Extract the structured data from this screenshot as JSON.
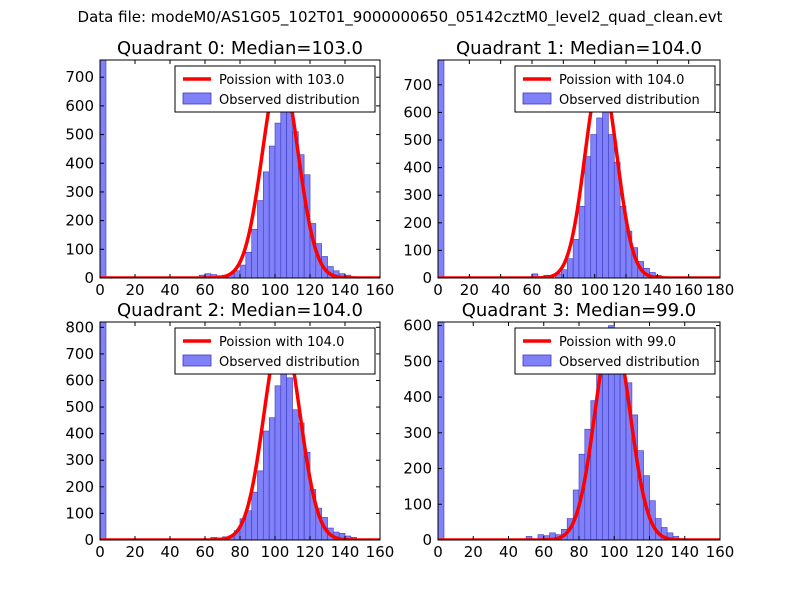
{
  "suptitle": "Data file: modeM0/AS1G05_102T01_9000000650_05142cztM0_level2_quad_clean.evt",
  "colors": {
    "bar_fill": "#8080f8",
    "bar_edge": "#3b3bc0",
    "curve": "#ff0000",
    "curve_highlight": "#f2a0a0"
  },
  "chart_data": [
    {
      "type": "bar",
      "title": "Quadrant 0: Median=103.0",
      "median": 103.0,
      "xlim": [
        0,
        160
      ],
      "ylim": [
        0,
        760
      ],
      "xticks": [
        0,
        20,
        40,
        60,
        80,
        100,
        120,
        140,
        160
      ],
      "yticks": [
        0,
        100,
        200,
        300,
        400,
        500,
        600,
        700
      ],
      "bin_width": 3.33,
      "bins": [
        {
          "x": 0,
          "y": 760
        },
        {
          "x": 56.7,
          "y": 10
        },
        {
          "x": 60,
          "y": 15
        },
        {
          "x": 63.3,
          "y": 12
        },
        {
          "x": 66.7,
          "y": 8
        },
        {
          "x": 70,
          "y": 10
        },
        {
          "x": 73.3,
          "y": 15
        },
        {
          "x": 76.7,
          "y": 25
        },
        {
          "x": 80,
          "y": 45
        },
        {
          "x": 83.3,
          "y": 90
        },
        {
          "x": 86.7,
          "y": 170
        },
        {
          "x": 90,
          "y": 270
        },
        {
          "x": 93.3,
          "y": 370
        },
        {
          "x": 96.7,
          "y": 460
        },
        {
          "x": 100,
          "y": 540
        },
        {
          "x": 103.3,
          "y": 580
        },
        {
          "x": 106.7,
          "y": 670
        },
        {
          "x": 110,
          "y": 510
        },
        {
          "x": 113.3,
          "y": 430
        },
        {
          "x": 116.7,
          "y": 360
        },
        {
          "x": 120,
          "y": 190
        },
        {
          "x": 123.3,
          "y": 120
        },
        {
          "x": 126.7,
          "y": 75
        },
        {
          "x": 130,
          "y": 40
        },
        {
          "x": 133.3,
          "y": 25
        },
        {
          "x": 136.7,
          "y": 15
        },
        {
          "x": 140,
          "y": 10
        },
        {
          "x": 143.3,
          "y": 5
        }
      ],
      "fit": {
        "label": "Poission with 103.0",
        "center": 103,
        "peak": 725
      },
      "legend": {
        "curve_label": "Poission with 103.0",
        "bar_label": "Observed distribution"
      }
    },
    {
      "type": "bar",
      "title": "Quadrant 1: Median=104.0",
      "median": 104.0,
      "xlim": [
        0,
        180
      ],
      "ylim": [
        0,
        790
      ],
      "xticks": [
        0,
        20,
        40,
        60,
        80,
        100,
        120,
        140,
        160,
        180
      ],
      "yticks": [
        0,
        100,
        200,
        300,
        400,
        500,
        600,
        700
      ],
      "bin_width": 3.75,
      "bins": [
        {
          "x": 0,
          "y": 790
        },
        {
          "x": 60,
          "y": 15
        },
        {
          "x": 67.5,
          "y": 10
        },
        {
          "x": 75,
          "y": 15
        },
        {
          "x": 78.75,
          "y": 30
        },
        {
          "x": 82.5,
          "y": 70
        },
        {
          "x": 86.25,
          "y": 140
        },
        {
          "x": 90,
          "y": 260
        },
        {
          "x": 93.75,
          "y": 440
        },
        {
          "x": 97.5,
          "y": 520
        },
        {
          "x": 101.25,
          "y": 580
        },
        {
          "x": 105,
          "y": 720
        },
        {
          "x": 108.75,
          "y": 520
        },
        {
          "x": 112.5,
          "y": 420
        },
        {
          "x": 116.25,
          "y": 260
        },
        {
          "x": 120,
          "y": 170
        },
        {
          "x": 123.75,
          "y": 110
        },
        {
          "x": 127.5,
          "y": 60
        },
        {
          "x": 131.25,
          "y": 35
        },
        {
          "x": 135,
          "y": 20
        },
        {
          "x": 138.75,
          "y": 10
        },
        {
          "x": 142.5,
          "y": 5
        }
      ],
      "fit": {
        "label": "Poission with 104.0",
        "center": 104,
        "peak": 735
      },
      "legend": {
        "curve_label": "Poission with 104.0",
        "bar_label": "Observed distribution"
      }
    },
    {
      "type": "bar",
      "title": "Quadrant 2: Median=104.0",
      "median": 104.0,
      "xlim": [
        0,
        160
      ],
      "ylim": [
        0,
        820
      ],
      "xticks": [
        0,
        20,
        40,
        60,
        80,
        100,
        120,
        140,
        160
      ],
      "yticks": [
        0,
        100,
        200,
        300,
        400,
        500,
        600,
        700,
        800
      ],
      "bin_width": 3.33,
      "bins": [
        {
          "x": 0,
          "y": 820
        },
        {
          "x": 63.3,
          "y": 10
        },
        {
          "x": 66.7,
          "y": 8
        },
        {
          "x": 70,
          "y": 12
        },
        {
          "x": 73.3,
          "y": 15
        },
        {
          "x": 76.7,
          "y": 35
        },
        {
          "x": 80,
          "y": 80
        },
        {
          "x": 83.3,
          "y": 110
        },
        {
          "x": 86.7,
          "y": 180
        },
        {
          "x": 90,
          "y": 260
        },
        {
          "x": 93.3,
          "y": 410
        },
        {
          "x": 96.7,
          "y": 460
        },
        {
          "x": 100,
          "y": 580
        },
        {
          "x": 103.3,
          "y": 730
        },
        {
          "x": 106.7,
          "y": 610
        },
        {
          "x": 110,
          "y": 490
        },
        {
          "x": 113.3,
          "y": 440
        },
        {
          "x": 116.7,
          "y": 330
        },
        {
          "x": 120,
          "y": 190
        },
        {
          "x": 123.3,
          "y": 120
        },
        {
          "x": 126.7,
          "y": 85
        },
        {
          "x": 130,
          "y": 45
        },
        {
          "x": 133.3,
          "y": 30
        },
        {
          "x": 136.7,
          "y": 25
        },
        {
          "x": 140,
          "y": 15
        },
        {
          "x": 143.3,
          "y": 10
        }
      ],
      "fit": {
        "label": "Poission with 104.0",
        "center": 104,
        "peak": 790
      },
      "legend": {
        "curve_label": "Poission with 104.0",
        "bar_label": "Observed distribution"
      }
    },
    {
      "type": "bar",
      "title": "Quadrant 3: Median=99.0",
      "median": 99.0,
      "xlim": [
        0,
        160
      ],
      "ylim": [
        0,
        610
      ],
      "xticks": [
        0,
        20,
        40,
        60,
        80,
        100,
        120,
        140,
        160
      ],
      "yticks": [
        0,
        100,
        200,
        300,
        400,
        500,
        600
      ],
      "bin_width": 3.33,
      "bins": [
        {
          "x": 0,
          "y": 610
        },
        {
          "x": 50,
          "y": 10
        },
        {
          "x": 56.7,
          "y": 15
        },
        {
          "x": 60,
          "y": 12
        },
        {
          "x": 63.3,
          "y": 20
        },
        {
          "x": 66.7,
          "y": 15
        },
        {
          "x": 70,
          "y": 30
        },
        {
          "x": 73.3,
          "y": 60
        },
        {
          "x": 76.7,
          "y": 140
        },
        {
          "x": 80,
          "y": 240
        },
        {
          "x": 83.3,
          "y": 310
        },
        {
          "x": 86.7,
          "y": 390
        },
        {
          "x": 90,
          "y": 500
        },
        {
          "x": 93.3,
          "y": 550
        },
        {
          "x": 96.7,
          "y": 600
        },
        {
          "x": 100,
          "y": 580
        },
        {
          "x": 103.3,
          "y": 500
        },
        {
          "x": 106.7,
          "y": 440
        },
        {
          "x": 110,
          "y": 350
        },
        {
          "x": 113.3,
          "y": 250
        },
        {
          "x": 116.7,
          "y": 180
        },
        {
          "x": 120,
          "y": 110
        },
        {
          "x": 123.3,
          "y": 60
        },
        {
          "x": 126.7,
          "y": 35
        },
        {
          "x": 130,
          "y": 20
        },
        {
          "x": 133.3,
          "y": 10
        }
      ],
      "fit": {
        "label": "Poission with 99.0",
        "center": 99,
        "peak": 590
      },
      "legend": {
        "curve_label": "Poission with 99.0",
        "bar_label": "Observed distribution"
      }
    }
  ]
}
